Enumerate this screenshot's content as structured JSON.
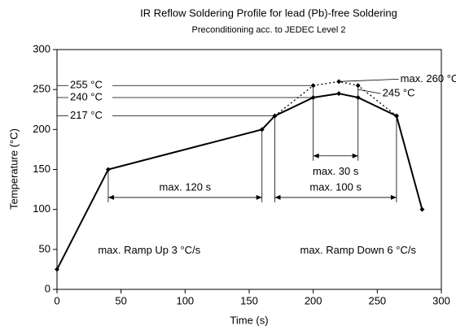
{
  "chart_data": {
    "type": "line",
    "title": "IR Reflow Soldering Profile for lead (Pb)-free Soldering",
    "subtitle": "Preconditioning acc. to JEDEC Level 2",
    "x_label": "Time (s)",
    "y_label": "Temperature (°C)",
    "xlim": [
      0,
      300
    ],
    "xticks": [
      0,
      50,
      100,
      150,
      200,
      250,
      300
    ],
    "ylim": [
      0,
      300
    ],
    "yticks": [
      0,
      50,
      100,
      150,
      200,
      250,
      300
    ],
    "grid": false,
    "series": [
      {
        "color": "#000000",
        "style": "solid",
        "x": [
          0,
          40,
          160,
          170,
          200,
          220,
          235,
          265,
          285
        ],
        "values": [
          25,
          150,
          200,
          217,
          240,
          245,
          240,
          217,
          100
        ]
      },
      {
        "color": "#000000",
        "style": "dotted",
        "x": [
          170,
          200,
          220,
          235,
          265
        ],
        "values": [
          217,
          255,
          260,
          255,
          217
        ]
      }
    ],
    "hlines": [
      {
        "y": 255,
        "x_end": 200,
        "label": "255 °C"
      },
      {
        "y": 240,
        "x_end": 200,
        "label": "240 °C"
      },
      {
        "y": 217,
        "x_end": 170,
        "label": "217 °C"
      }
    ],
    "spans": [
      {
        "x0": 40,
        "x1": 160,
        "y": 115,
        "tops": [
          150,
          200
        ],
        "label": "max. 120 s",
        "label_pos": "above"
      },
      {
        "x0": 170,
        "x1": 265,
        "y": 115,
        "tops": [
          217,
          217
        ],
        "label": "max. 100 s",
        "label_pos": "above"
      },
      {
        "x0": 200,
        "x1": 235,
        "y": 167,
        "tops": [
          255,
          255
        ],
        "label": "max. 30 s",
        "label_pos": "below"
      }
    ],
    "annotations": [
      {
        "text": "max. 260 °C",
        "x": 268,
        "y": 263,
        "from": [
          220,
          260
        ]
      },
      {
        "text": "245 °C",
        "x": 254,
        "y": 245,
        "from": [
          235,
          250
        ]
      },
      {
        "text": "max. Ramp Up 3 °C/s",
        "x": 72,
        "y": 48
      },
      {
        "text": "max. Ramp Down 6 °C/s",
        "x": 235,
        "y": 48
      }
    ]
  }
}
